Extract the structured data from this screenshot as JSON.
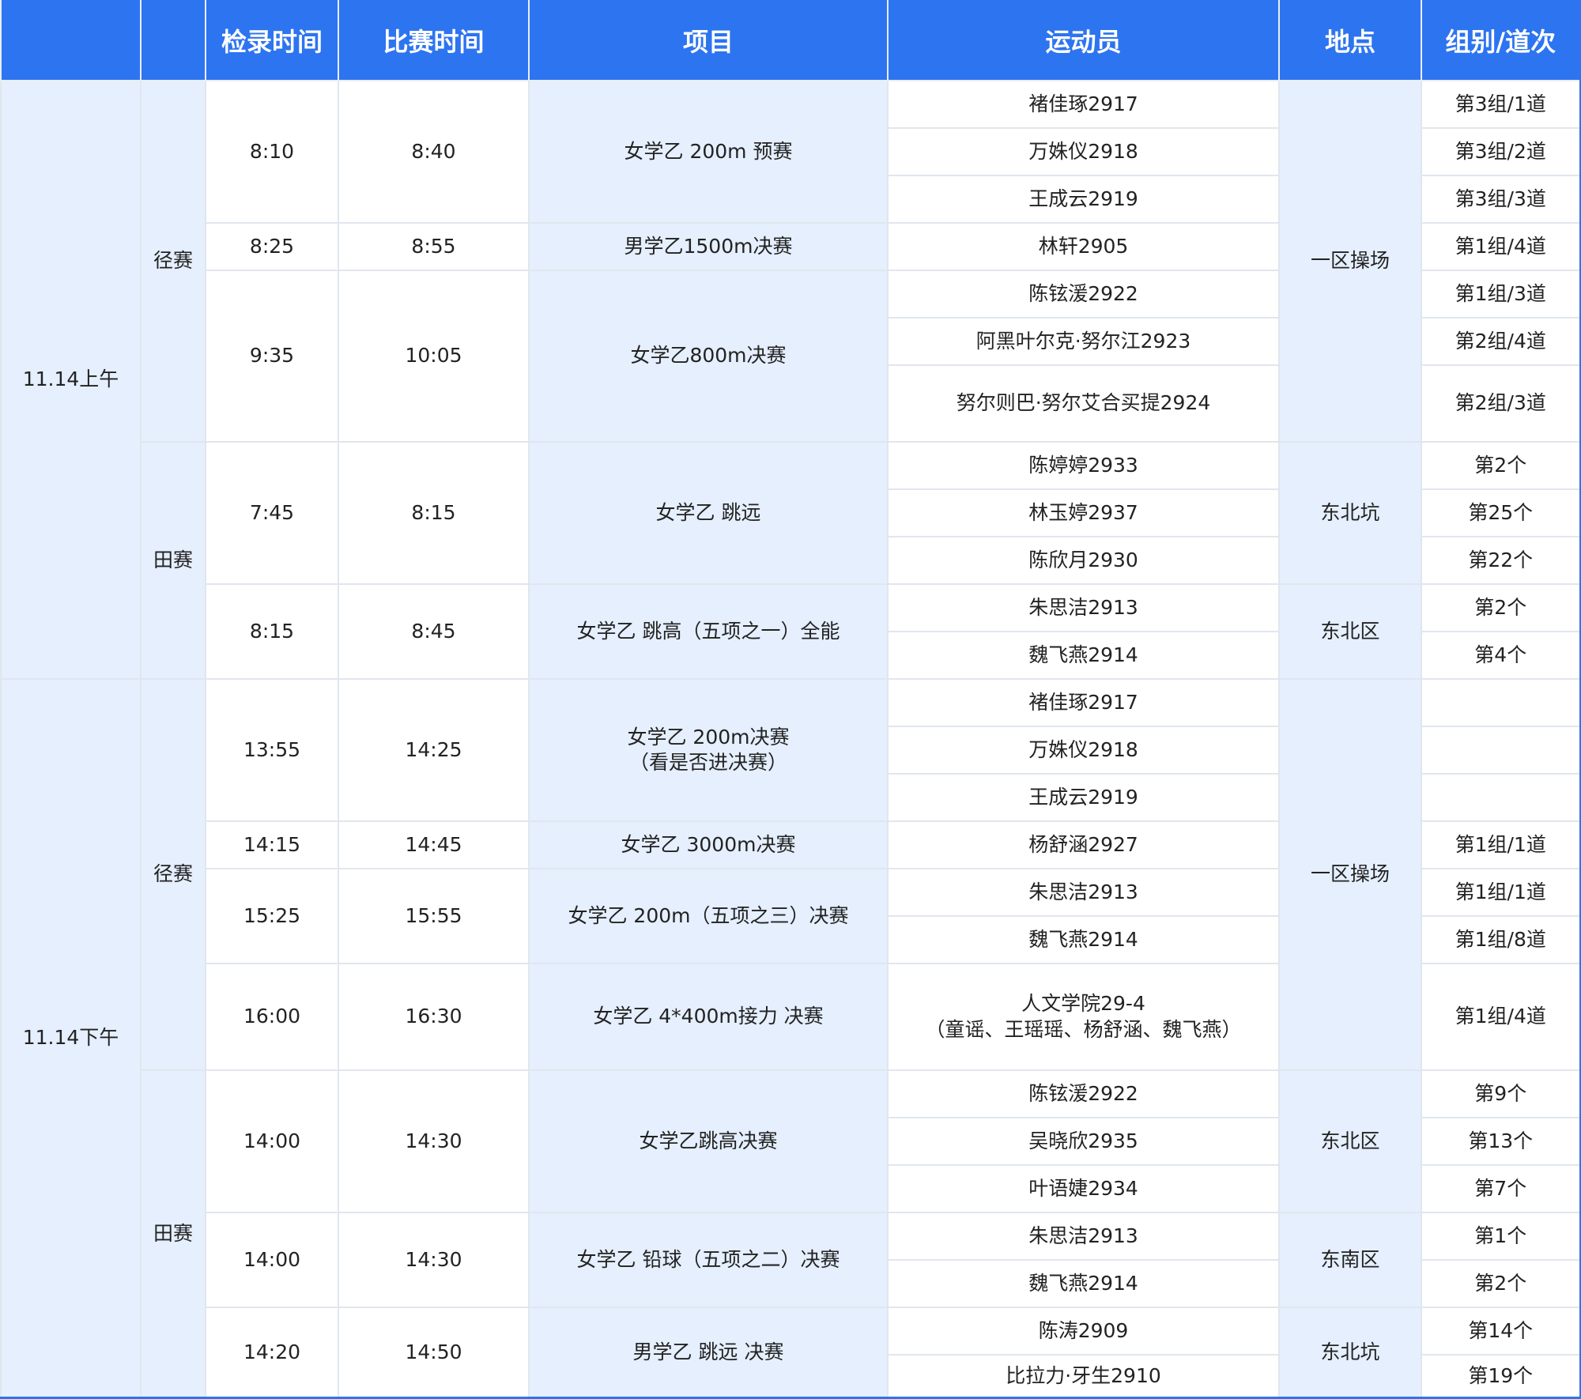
{
  "colors": {
    "header": "#2d74f0",
    "merged_cell": "#e5effd",
    "border": "#e1e6ee"
  },
  "headers": [
    "",
    "",
    "检录时间",
    "比赛时间",
    "项目",
    "运动员",
    "地点",
    "组别/道次"
  ],
  "sessions": [
    {
      "label": "11.14上午",
      "categories": [
        {
          "label": "径赛",
          "venues": [
            {
              "name": "一区操场",
              "events": [
                {
                  "checkin": "8:10",
                  "start": "8:40",
                  "name": [
                    "女学乙 200m 预赛"
                  ],
                  "athletes": [
                    {
                      "name": [
                        "褚佳琢2917"
                      ],
                      "lane": "第3组/1道"
                    },
                    {
                      "name": [
                        "万姝仪2918"
                      ],
                      "lane": "第3组/2道"
                    },
                    {
                      "name": [
                        "王成云2919"
                      ],
                      "lane": "第3组/3道"
                    }
                  ]
                },
                {
                  "checkin": "8:25",
                  "start": "8:55",
                  "name": [
                    "男学乙1500m决赛"
                  ],
                  "athletes": [
                    {
                      "name": [
                        "林轩2905"
                      ],
                      "lane": "第1组/4道"
                    }
                  ]
                },
                {
                  "checkin": "9:35",
                  "start": "10:05",
                  "name": [
                    "女学乙800m决赛"
                  ],
                  "athletes": [
                    {
                      "name": [
                        "陈铉湲2922"
                      ],
                      "lane": "第1组/3道"
                    },
                    {
                      "name": [
                        "阿黑叶尔克·努尔江2923"
                      ],
                      "lane": "第2组/4道"
                    },
                    {
                      "name": [
                        "努尔则巴·努尔艾合买提2924"
                      ],
                      "lane": "第2组/3道"
                    }
                  ]
                }
              ]
            }
          ]
        },
        {
          "label": "田赛",
          "venues": [
            {
              "name": "东北坑",
              "events": [
                {
                  "checkin": "7:45",
                  "start": "8:15",
                  "name": [
                    "女学乙 跳远"
                  ],
                  "athletes": [
                    {
                      "name": [
                        "陈婷婷2933"
                      ],
                      "lane": "第2个"
                    },
                    {
                      "name": [
                        "林玉婷2937"
                      ],
                      "lane": "第25个"
                    },
                    {
                      "name": [
                        "陈欣月2930"
                      ],
                      "lane": "第22个"
                    }
                  ]
                }
              ]
            },
            {
              "name": "东北区",
              "events": [
                {
                  "checkin": "8:15",
                  "start": "8:45",
                  "name": [
                    "女学乙 跳高（五项之一）全能"
                  ],
                  "athletes": [
                    {
                      "name": [
                        "朱思洁2913"
                      ],
                      "lane": "第2个"
                    },
                    {
                      "name": [
                        "魏飞燕2914"
                      ],
                      "lane": "第4个"
                    }
                  ]
                }
              ]
            }
          ]
        }
      ]
    },
    {
      "label": "11.14下午",
      "categories": [
        {
          "label": "径赛",
          "venues": [
            {
              "name": "一区操场",
              "events": [
                {
                  "checkin": "13:55",
                  "start": "14:25",
                  "name": [
                    "女学乙 200m决赛",
                    "（看是否进决赛）"
                  ],
                  "athletes": [
                    {
                      "name": [
                        "褚佳琢2917"
                      ],
                      "lane": ""
                    },
                    {
                      "name": [
                        "万姝仪2918"
                      ],
                      "lane": ""
                    },
                    {
                      "name": [
                        "王成云2919"
                      ],
                      "lane": ""
                    }
                  ]
                },
                {
                  "checkin": "14:15",
                  "start": "14:45",
                  "name": [
                    "女学乙 3000m决赛"
                  ],
                  "athletes": [
                    {
                      "name": [
                        "杨舒涵2927"
                      ],
                      "lane": "第1组/1道"
                    }
                  ]
                },
                {
                  "checkin": "15:25",
                  "start": "15:55",
                  "name": [
                    "女学乙 200m（五项之三）决赛"
                  ],
                  "athletes": [
                    {
                      "name": [
                        "朱思洁2913"
                      ],
                      "lane": "第1组/1道"
                    },
                    {
                      "name": [
                        "魏飞燕2914"
                      ],
                      "lane": "第1组/8道"
                    }
                  ]
                },
                {
                  "checkin": "16:00",
                  "start": "16:30",
                  "name": [
                    "女学乙 4*400m接力 决赛"
                  ],
                  "athletes": [
                    {
                      "name": [
                        "人文学院29-4",
                        "（童谣、王瑶瑶、杨舒涵、魏飞燕）"
                      ],
                      "lane": "第1组/4道"
                    }
                  ]
                }
              ]
            }
          ]
        },
        {
          "label": "田赛",
          "venues": [
            {
              "name": "东北区",
              "events": [
                {
                  "checkin": "14:00",
                  "start": "14:30",
                  "name": [
                    "女学乙跳高决赛"
                  ],
                  "athletes": [
                    {
                      "name": [
                        "陈铉湲2922"
                      ],
                      "lane": "第9个"
                    },
                    {
                      "name": [
                        "吴晓欣2935"
                      ],
                      "lane": "第13个"
                    },
                    {
                      "name": [
                        "叶语婕2934"
                      ],
                      "lane": "第7个"
                    }
                  ]
                }
              ]
            },
            {
              "name": "东南区",
              "events": [
                {
                  "checkin": "14:00",
                  "start": "14:30",
                  "name": [
                    "女学乙 铅球（五项之二）决赛"
                  ],
                  "athletes": [
                    {
                      "name": [
                        "朱思洁2913"
                      ],
                      "lane": "第1个"
                    },
                    {
                      "name": [
                        "魏飞燕2914"
                      ],
                      "lane": "第2个"
                    }
                  ]
                }
              ]
            },
            {
              "name": "东北坑",
              "events": [
                {
                  "checkin": "14:20",
                  "start": "14:50",
                  "name": [
                    "男学乙 跳远 决赛"
                  ],
                  "athletes": [
                    {
                      "name": [
                        "陈涛2909"
                      ],
                      "lane": "第14个"
                    },
                    {
                      "name": [
                        "比拉力·牙生2910"
                      ],
                      "lane": "第19个"
                    }
                  ]
                }
              ]
            }
          ]
        }
      ]
    }
  ]
}
